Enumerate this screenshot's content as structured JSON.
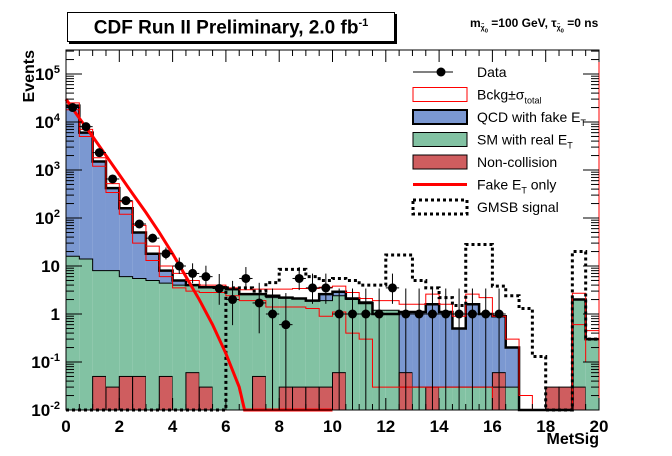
{
  "header": {
    "title": "CDF Run II Preliminary, 2.0 fb",
    "title_sup": "-1",
    "subtitle_parts": {
      "m": "m",
      "chi_sub": "χ̃",
      "chi_sub2": "0",
      "mass": "=100 GeV, ",
      "tau": "τ",
      "life": "=0 ns"
    }
  },
  "chart_data": {
    "type": "histogram",
    "title": "CDF Run II Preliminary, 2.0 fb^-1",
    "annotation": "m_χ0 =100 GeV, τ_χ0 =0 ns",
    "xlabel": "MetSig",
    "ylabel": "Events",
    "xlim": [
      0,
      20
    ],
    "ylim": [
      0.01,
      300000
    ],
    "yscale": "log",
    "bin_width": 0.5,
    "x_ticks": [
      "0",
      "2",
      "4",
      "6",
      "8",
      "10",
      "12",
      "14",
      "16",
      "18",
      "20"
    ],
    "y_ticks": [
      {
        "base": "10",
        "exp": "5",
        "value": 100000
      },
      {
        "base": "10",
        "exp": "4",
        "value": 10000
      },
      {
        "base": "10",
        "exp": "3",
        "value": 1000
      },
      {
        "base": "10",
        "exp": "2",
        "value": 100
      },
      {
        "base": "10",
        "exp": "",
        "value": 10
      },
      {
        "base": "1",
        "exp": "",
        "value": 1
      },
      {
        "base": "10",
        "exp": "-1",
        "value": 0.1
      },
      {
        "base": "10",
        "exp": "-2",
        "value": 0.01
      }
    ],
    "legend": {
      "placement": "top-right",
      "entries": [
        {
          "label": "Data",
          "style": "marker"
        },
        {
          "label": "Bckg±σ",
          "sub": "total",
          "style": "red-outline"
        },
        {
          "label": "QCD with fake E",
          "sub": "T",
          "style": "blue-fill"
        },
        {
          "label": "SM with real E",
          "sub": "T",
          "style": "green-fill"
        },
        {
          "label": "Non-collision",
          "style": "red-fill"
        },
        {
          "label": "Fake E",
          "sub": "T",
          "label_after": " only",
          "style": "red-line"
        },
        {
          "label": "GMSB signal",
          "style": "dotted"
        }
      ]
    },
    "colors": {
      "qcd": "#7b98d1",
      "sm": "#82c2a3",
      "noncoll": "#cf5d5f",
      "band": "#ff0000",
      "fake_line": "#ff0000",
      "signal": "#000000",
      "data": "#000000"
    },
    "series": {
      "noncollision": [
        0.01,
        0.01,
        0.05,
        0.03,
        0.05,
        0.05,
        0.01,
        0.05,
        0.01,
        0.06,
        0.03,
        0.01,
        0.01,
        0.01,
        0.05,
        0.01,
        0.03,
        0.03,
        0.03,
        0.03,
        0.06,
        0.01,
        0.01,
        0.01,
        0.01,
        0.06,
        0.01,
        0.03,
        0.01,
        0.01,
        0.01,
        0.01,
        0.06,
        0.01,
        0.01,
        0.01,
        0.03,
        0.03,
        0.03,
        0.01
      ],
      "sm_top": [
        16,
        14,
        8,
        8,
        6,
        5.5,
        5,
        4.4,
        4,
        4,
        3.6,
        3.6,
        3.2,
        2.6,
        2.6,
        2.2,
        2.2,
        2.1,
        1.9,
        1.9,
        2.4,
        2.0,
        1.8,
        1.2,
        1.2,
        0.03,
        0.03,
        0.03,
        0.03,
        0.03,
        0.03,
        0.03,
        0.03,
        0.03,
        0.01,
        0.01,
        0,
        0.01,
        2.0,
        0.3
      ],
      "total_top": [
        22000,
        6000,
        1500,
        420,
        160,
        50,
        18,
        8,
        5,
        4,
        3.6,
        3.6,
        3.3,
        2.6,
        2.6,
        2.4,
        2.2,
        2.1,
        1.9,
        2.6,
        2.9,
        2.1,
        1.7,
        1.0,
        1.0,
        1.1,
        1.1,
        1.6,
        1.1,
        0.5,
        1.6,
        1.0,
        0.9,
        0.2,
        0.01,
        0.01,
        0,
        0.01,
        2.0,
        0.3
      ],
      "qcd_visible_to_bin": 26,
      "band_high": [
        25000,
        7000,
        1800,
        520,
        220,
        70,
        26,
        10,
        7,
        5,
        4,
        4,
        3.5,
        3.2,
        3.3,
        3.3,
        3.3,
        3.4,
        3.4,
        3.6,
        3.8,
        2.8,
        2.1,
        1.9,
        1.9,
        1.6,
        1.6,
        2.6,
        1.6,
        0.9,
        2.6,
        2.2,
        0.9,
        0.3,
        0.02,
        0.01,
        0,
        0.01,
        2.7,
        0.45
      ],
      "band_low": [
        18000,
        5000,
        1200,
        340,
        120,
        30,
        13,
        6,
        3.5,
        3,
        2.8,
        2.8,
        2.4,
        1.9,
        1.9,
        1.4,
        1.4,
        1.4,
        1.3,
        0.9,
        1.1,
        0.4,
        0.3,
        0.03,
        0.03,
        0.03,
        0.03,
        0.03,
        0.03,
        0.03,
        0.03,
        0.03,
        0.01,
        0.01,
        0.01,
        0.01,
        0,
        0.01,
        0.6,
        0.1
      ],
      "data": [
        {
          "x": 0.25,
          "y": 20000
        },
        {
          "x": 0.75,
          "y": 8000
        },
        {
          "x": 1.25,
          "y": 2300
        },
        {
          "x": 1.75,
          "y": 650
        },
        {
          "x": 2.25,
          "y": 230
        },
        {
          "x": 2.75,
          "y": 75
        },
        {
          "x": 3.25,
          "y": 38
        },
        {
          "x": 3.75,
          "y": 18
        },
        {
          "x": 4.25,
          "y": 10
        },
        {
          "x": 4.75,
          "y": 7
        },
        {
          "x": 5.25,
          "y": 6
        },
        {
          "x": 5.75,
          "y": 3.4
        },
        {
          "x": 6.25,
          "y": 2
        },
        {
          "x": 6.75,
          "y": 5.5
        },
        {
          "x": 7.25,
          "y": 1.7
        },
        {
          "x": 7.75,
          "y": 1
        },
        {
          "x": 8.25,
          "y": 0.6
        },
        {
          "x": 8.75,
          "y": 5.5
        },
        {
          "x": 9.25,
          "y": 3.5
        },
        {
          "x": 9.75,
          "y": 3.5
        },
        {
          "x": 10.25,
          "y": 1
        },
        {
          "x": 10.75,
          "y": 1
        },
        {
          "x": 11.25,
          "y": 1
        },
        {
          "x": 11.75,
          "y": 1
        },
        {
          "x": 12.25,
          "y": 3.5
        },
        {
          "x": 12.75,
          "y": 1
        },
        {
          "x": 13.25,
          "y": 1
        },
        {
          "x": 13.75,
          "y": 1
        },
        {
          "x": 14.25,
          "y": 1
        },
        {
          "x": 14.75,
          "y": 1
        },
        {
          "x": 15.25,
          "y": 1
        },
        {
          "x": 15.75,
          "y": 1
        },
        {
          "x": 16.25,
          "y": 1
        }
      ],
      "gmsb_signal": [
        0,
        0,
        0,
        0,
        0,
        0,
        0,
        0,
        0,
        0,
        0,
        0,
        3.5,
        3.5,
        3.0,
        4.5,
        8.5,
        8.5,
        6,
        5,
        5.5,
        5,
        4,
        4,
        17,
        17,
        5,
        3.5,
        2.2,
        1.5,
        28,
        28,
        3.8,
        2.4,
        1.3,
        0.13,
        0.01,
        0.01,
        20,
        0.3
      ],
      "fake_met_only": {
        "description": "exponential-like falloff",
        "points": [
          [
            0,
            30000
          ],
          [
            0.5,
            12000
          ],
          [
            1,
            5000
          ],
          [
            1.5,
            2000
          ],
          [
            2,
            800
          ],
          [
            2.5,
            320
          ],
          [
            3,
            130
          ],
          [
            3.5,
            50
          ],
          [
            4,
            18
          ],
          [
            4.5,
            6
          ],
          [
            5,
            2
          ],
          [
            5.5,
            0.6
          ],
          [
            6,
            0.15
          ],
          [
            6.5,
            0.03
          ],
          [
            6.7,
            0.01
          ],
          [
            10,
            0.01
          ]
        ]
      }
    }
  }
}
